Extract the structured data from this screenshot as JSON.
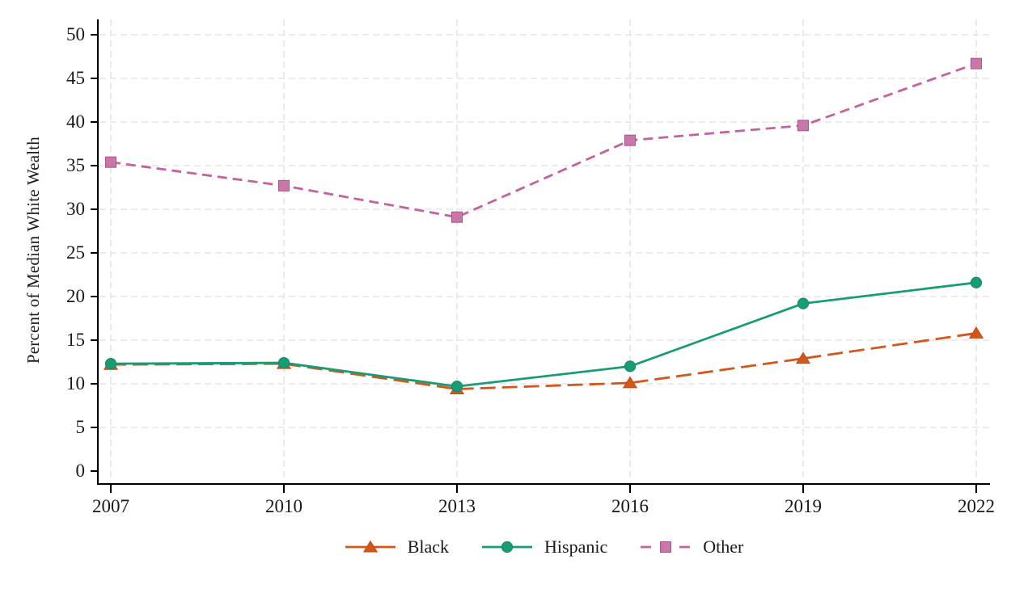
{
  "chart_data": {
    "type": "line",
    "title": "",
    "xlabel": "",
    "ylabel": "Percent of Median White Wealth",
    "x": [
      2007,
      2010,
      2013,
      2016,
      2019,
      2022
    ],
    "ylim": [
      0,
      50
    ],
    "yticks": [
      0,
      5,
      10,
      15,
      20,
      25,
      30,
      35,
      40,
      45,
      50
    ],
    "grid": true,
    "legend_position": "bottom",
    "series": [
      {
        "name": "Black",
        "marker": "triangle",
        "line_style": "long-dash",
        "color": "#D2571B",
        "marker_fill": "#D2571B",
        "marker_edge": "#C04B12",
        "values": [
          12.2,
          12.3,
          9.4,
          10.1,
          12.9,
          15.8
        ]
      },
      {
        "name": "Hispanic",
        "marker": "circle",
        "line_style": "solid",
        "color": "#189C75",
        "marker_fill": "#189C75",
        "marker_edge": "#108A66",
        "values": [
          12.3,
          12.4,
          9.7,
          12.0,
          19.2,
          21.6
        ]
      },
      {
        "name": "Other",
        "marker": "square",
        "line_style": "dash",
        "color": "#C4619E",
        "marker_fill": "#C877A8",
        "marker_edge": "#AC528C",
        "values": [
          35.4,
          32.7,
          29.1,
          37.9,
          39.6,
          46.7
        ]
      }
    ]
  },
  "style_colors": {
    "axis": "#000000",
    "tick_text": "#1a1a1a",
    "gridline": "#E5E5E5",
    "background": "#ffffff"
  }
}
